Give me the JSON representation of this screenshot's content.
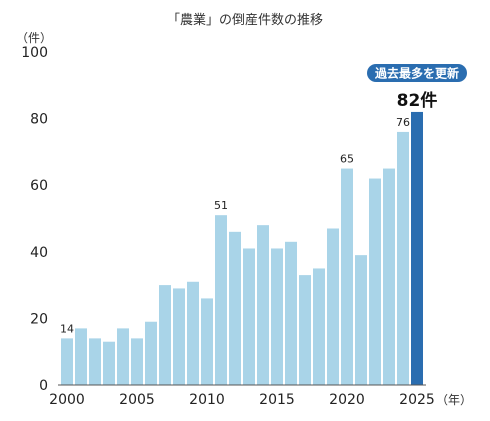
{
  "chart_data": {
    "type": "bar",
    "title": "「農業」の倒産件数の推移",
    "ylabel": "（件）",
    "xunit": "（年）",
    "ylim": [
      0,
      100
    ],
    "yticks": [
      0,
      20,
      40,
      60,
      80,
      100
    ],
    "xticks": [
      "2000",
      "2005",
      "2010",
      "2015",
      "2020",
      "2025"
    ],
    "categories": [
      "2000",
      "2001",
      "2002",
      "2003",
      "2004",
      "2005",
      "2006",
      "2007",
      "2008",
      "2009",
      "2010",
      "2011",
      "2012",
      "2013",
      "2014",
      "2015",
      "2016",
      "2017",
      "2018",
      "2019",
      "2020",
      "2021",
      "2022",
      "2023",
      "2024",
      "2025"
    ],
    "values": [
      14,
      17,
      14,
      13,
      17,
      14,
      19,
      30,
      29,
      31,
      26,
      51,
      46,
      41,
      48,
      41,
      43,
      33,
      35,
      47,
      65,
      39,
      62,
      65,
      76,
      82
    ],
    "data_labels": [
      {
        "category": "2000",
        "text": "14"
      },
      {
        "category": "2011",
        "text": "51"
      },
      {
        "category": "2020",
        "text": "65"
      },
      {
        "category": "2024",
        "text": "76"
      }
    ],
    "highlight": {
      "category": "2025",
      "badge": "過去最多を更新",
      "callout": "82件"
    },
    "colors": {
      "bar": "#a9d4e8",
      "highlight_bar": "#2a6db0",
      "badge": "#2a6db0",
      "axis": "#555555"
    },
    "grid": false,
    "legend": "none"
  }
}
